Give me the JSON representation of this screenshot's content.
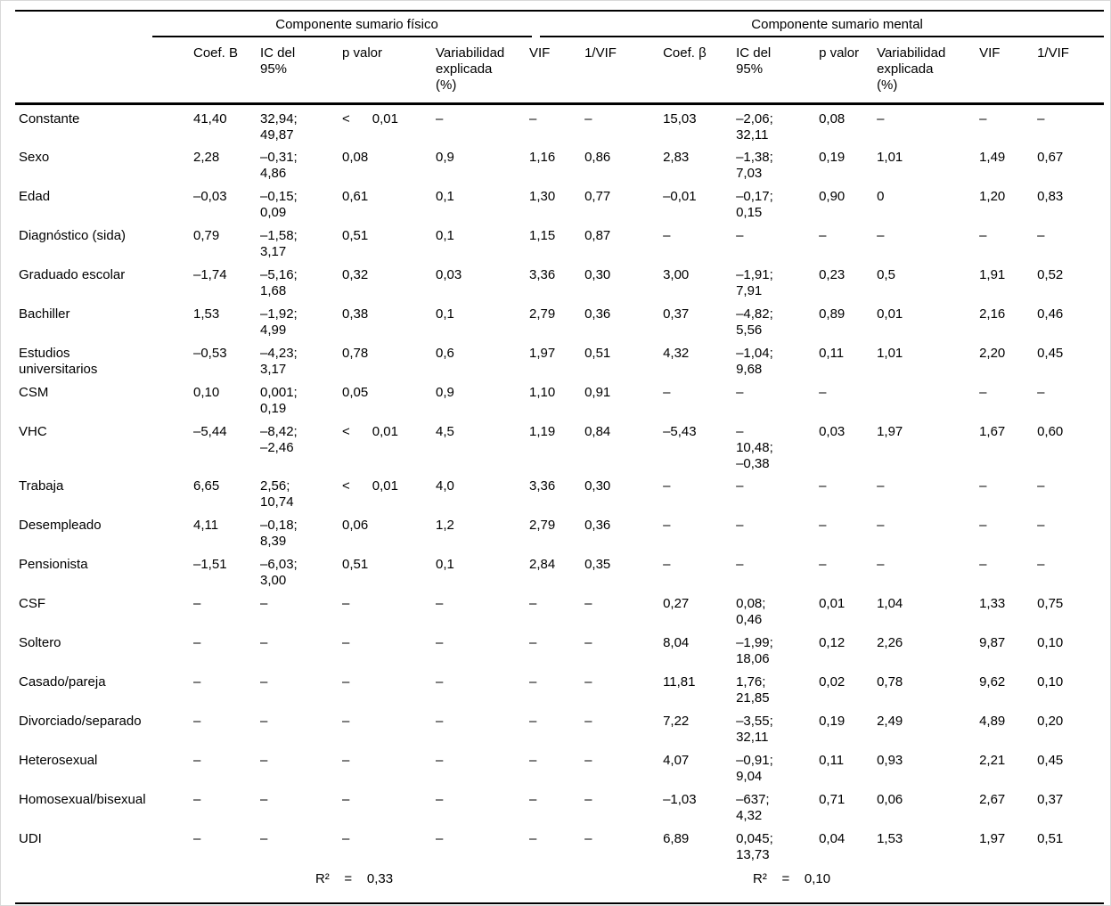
{
  "table": {
    "groups": [
      {
        "label": "Componente sumario físico"
      },
      {
        "label": "Componente sumario mental"
      }
    ],
    "columns": [
      "Coef. B",
      "IC del\n95%",
      "p valor",
      "Variabilidad\nexplicada\n(%)",
      "VIF",
      "1/VIF",
      "Coef. β",
      "IC del\n95%",
      "p valor",
      "Variabilidad\nexplicada\n(%)",
      "VIF",
      "1/VIF"
    ],
    "rows": [
      {
        "label": "Constante",
        "cells": [
          "41,40",
          "32,94;\n49,87",
          "<      0,01",
          "–",
          "–",
          "–",
          "15,03",
          "–2,06;\n32,11",
          "0,08",
          "–",
          "–",
          "–"
        ]
      },
      {
        "label": "Sexo",
        "cells": [
          "2,28",
          "–0,31;\n4,86",
          "0,08",
          "0,9",
          "1,16",
          "0,86",
          "2,83",
          "–1,38;\n7,03",
          "0,19",
          "1,01",
          "1,49",
          "0,67"
        ]
      },
      {
        "label": "Edad",
        "cells": [
          "–0,03",
          "–0,15;\n0,09",
          "0,61",
          "0,1",
          "1,30",
          "0,77",
          "–0,01",
          "–0,17;\n0,15",
          "0,90",
          "0",
          "1,20",
          "0,83"
        ]
      },
      {
        "label": "Diagnóstico (sida)",
        "cells": [
          "0,79",
          "–1,58;\n3,17",
          "0,51",
          "0,1",
          "1,15",
          "0,87",
          "–",
          "–",
          "–",
          "–",
          "–",
          "–"
        ]
      },
      {
        "label": "Graduado escolar",
        "cells": [
          "–1,74",
          "–5,16;\n1,68",
          "0,32",
          "0,03",
          "3,36",
          "0,30",
          "3,00",
          "–1,91;\n7,91",
          "0,23",
          "0,5",
          "1,91",
          "0,52"
        ]
      },
      {
        "label": "Bachiller",
        "cells": [
          "1,53",
          "–1,92;\n4,99",
          "0,38",
          "0,1",
          "2,79",
          "0,36",
          "0,37",
          "–4,82;\n5,56",
          "0,89",
          "0,01",
          "2,16",
          "0,46"
        ]
      },
      {
        "label": "Estudios\nuniversitarios",
        "cells": [
          "–0,53",
          "–4,23;\n3,17",
          "0,78",
          "0,6",
          "1,97",
          "0,51",
          "4,32",
          "–1,04;\n9,68",
          "0,11",
          "1,01",
          "2,20",
          "0,45"
        ]
      },
      {
        "label": "CSM",
        "cells": [
          "0,10",
          "0,001;\n0,19",
          "0,05",
          "0,9",
          "1,10",
          "0,91",
          "–",
          "–",
          "–",
          "",
          "–",
          "–"
        ]
      },
      {
        "label": "VHC",
        "cells": [
          "–5,44",
          "–8,42;\n–2,46",
          "<      0,01",
          "4,5",
          "1,19",
          "0,84",
          "–5,43",
          "–\n10,48;\n–0,38",
          "0,03",
          "1,97",
          "1,67",
          "0,60"
        ]
      },
      {
        "label": "Trabaja",
        "cells": [
          "6,65",
          "2,56;\n10,74",
          "<      0,01",
          "4,0",
          "3,36",
          "0,30",
          "–",
          "–",
          "–",
          "–",
          "–",
          "–"
        ]
      },
      {
        "label": "Desempleado",
        "cells": [
          "4,11",
          "–0,18;\n8,39",
          "0,06",
          "1,2",
          "2,79",
          "0,36",
          "–",
          "–",
          "–",
          "–",
          "–",
          "–"
        ]
      },
      {
        "label": "Pensionista",
        "cells": [
          "–1,51",
          "–6,03;\n3,00",
          "0,51",
          "0,1",
          "2,84",
          "0,35",
          "–",
          "–",
          "–",
          "–",
          "–",
          "–"
        ]
      },
      {
        "label": "CSF",
        "cells": [
          "–",
          "–",
          "–",
          "–",
          "–",
          "–",
          "0,27",
          "0,08;\n0,46",
          "0,01",
          "1,04",
          "1,33",
          "0,75"
        ]
      },
      {
        "label": "Soltero",
        "cells": [
          "–",
          "–",
          "–",
          "–",
          "–",
          "–",
          "8,04",
          "–1,99;\n18,06",
          "0,12",
          "2,26",
          "9,87",
          "0,10"
        ]
      },
      {
        "label": "Casado/pareja",
        "cells": [
          "–",
          "–",
          "–",
          "–",
          "–",
          "–",
          "11,81",
          "1,76;\n21,85",
          "0,02",
          "0,78",
          "9,62",
          "0,10"
        ]
      },
      {
        "label": "Divorciado/separado",
        "cells": [
          "–",
          "–",
          "–",
          "–",
          "–",
          "–",
          "7,22",
          "–3,55;\n32,11",
          "0,19",
          "2,49",
          "4,89",
          "0,20"
        ]
      },
      {
        "label": "Heterosexual",
        "cells": [
          "–",
          "–",
          "–",
          "–",
          "–",
          "–",
          "4,07",
          "–0,91;\n9,04",
          "0,11",
          "0,93",
          "2,21",
          "0,45"
        ]
      },
      {
        "label": "Homosexual/bisexual",
        "cells": [
          "–",
          "–",
          "–",
          "–",
          "–",
          "–",
          "–1,03",
          "–637;\n4,32",
          "0,71",
          "0,06",
          "2,67",
          "0,37"
        ]
      },
      {
        "label": "UDI",
        "cells": [
          "–",
          "–",
          "–",
          "–",
          "–",
          "–",
          "6,89",
          "0,045;\n13,73",
          "0,04",
          "1,53",
          "1,97",
          "0,51"
        ]
      }
    ],
    "footer": {
      "physical": "R²    =    0,33",
      "mental": "R²    =    0,10"
    }
  }
}
